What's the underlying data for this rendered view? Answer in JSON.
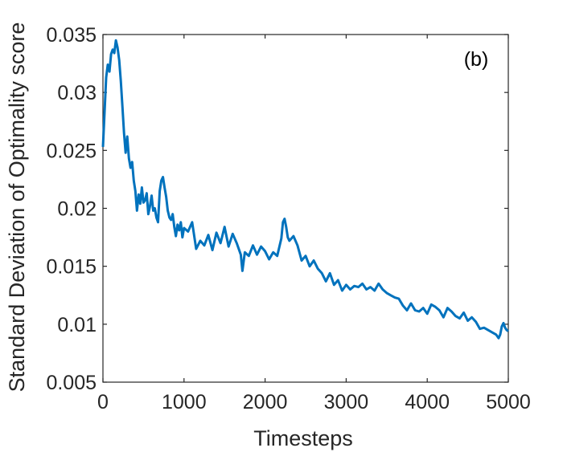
{
  "chart_data": {
    "type": "line",
    "title": "",
    "panel_label": "(b)",
    "xlabel": "Timesteps",
    "ylabel": "Standard Deviation of Optimality score",
    "xlim": [
      0,
      5000
    ],
    "ylim": [
      0.005,
      0.035
    ],
    "xticks": [
      0,
      1000,
      2000,
      3000,
      4000,
      5000
    ],
    "xtick_labels": [
      "0",
      "1000",
      "2000",
      "3000",
      "4000",
      "5000"
    ],
    "yticks": [
      0.005,
      0.01,
      0.015,
      0.02,
      0.025,
      0.03,
      0.035
    ],
    "ytick_labels": [
      "0.005",
      "0.01",
      "0.015",
      "0.02",
      "0.025",
      "0.03",
      "0.035"
    ],
    "grid": false,
    "line_color": "#0072BD",
    "series": [
      {
        "x": [
          0,
          20,
          40,
          60,
          80,
          100,
          120,
          140,
          160,
          180,
          200,
          220,
          240,
          260,
          280,
          300,
          320,
          340,
          360,
          380,
          400,
          420,
          440,
          460,
          480,
          500,
          520,
          540,
          560,
          580,
          600,
          620,
          640,
          660,
          680,
          700,
          720,
          740,
          760,
          780,
          800,
          820,
          840,
          860,
          880,
          900,
          920,
          940,
          960,
          980,
          1000,
          1050,
          1100,
          1150,
          1200,
          1250,
          1300,
          1350,
          1400,
          1450,
          1500,
          1550,
          1600,
          1650,
          1700,
          1720,
          1750,
          1800,
          1850,
          1900,
          1950,
          2000,
          2050,
          2100,
          2150,
          2200,
          2220,
          2240,
          2260,
          2280,
          2300,
          2350,
          2400,
          2450,
          2500,
          2550,
          2600,
          2650,
          2700,
          2750,
          2800,
          2850,
          2900,
          2950,
          3000,
          3050,
          3100,
          3150,
          3200,
          3250,
          3300,
          3350,
          3400,
          3450,
          3500,
          3550,
          3600,
          3650,
          3700,
          3750,
          3800,
          3850,
          3900,
          3950,
          4000,
          4050,
          4100,
          4150,
          4200,
          4250,
          4300,
          4350,
          4400,
          4450,
          4500,
          4550,
          4600,
          4650,
          4700,
          4750,
          4800,
          4850,
          4880,
          4900,
          4920,
          4940,
          4960,
          4980,
          5000
        ],
        "values": [
          0.0253,
          0.0283,
          0.0313,
          0.0324,
          0.0318,
          0.0333,
          0.0337,
          0.0334,
          0.0345,
          0.0339,
          0.0328,
          0.031,
          0.0288,
          0.0265,
          0.0248,
          0.0262,
          0.0243,
          0.0235,
          0.024,
          0.0224,
          0.0215,
          0.0198,
          0.0212,
          0.0204,
          0.0218,
          0.0205,
          0.0207,
          0.0213,
          0.0195,
          0.0202,
          0.0211,
          0.0198,
          0.02,
          0.0192,
          0.0188,
          0.0215,
          0.0224,
          0.0227,
          0.0218,
          0.021,
          0.0198,
          0.0192,
          0.019,
          0.0195,
          0.0184,
          0.0176,
          0.0186,
          0.0181,
          0.0188,
          0.0175,
          0.0183,
          0.018,
          0.0188,
          0.0165,
          0.0172,
          0.0168,
          0.0177,
          0.0164,
          0.0179,
          0.017,
          0.0184,
          0.0167,
          0.0178,
          0.017,
          0.016,
          0.0146,
          0.0162,
          0.0159,
          0.0168,
          0.016,
          0.0167,
          0.0163,
          0.0156,
          0.0162,
          0.0159,
          0.0174,
          0.0188,
          0.0191,
          0.0184,
          0.0175,
          0.0172,
          0.0176,
          0.0168,
          0.0155,
          0.0159,
          0.015,
          0.0155,
          0.0148,
          0.0144,
          0.0137,
          0.0144,
          0.0134,
          0.0138,
          0.0129,
          0.0134,
          0.013,
          0.0133,
          0.0132,
          0.0135,
          0.013,
          0.0132,
          0.0129,
          0.0135,
          0.013,
          0.0127,
          0.0125,
          0.0123,
          0.0122,
          0.0116,
          0.0112,
          0.0118,
          0.0112,
          0.0111,
          0.0114,
          0.0109,
          0.0117,
          0.0115,
          0.0112,
          0.0106,
          0.0114,
          0.0111,
          0.0107,
          0.0105,
          0.011,
          0.0103,
          0.0106,
          0.0102,
          0.0096,
          0.0097,
          0.0095,
          0.0093,
          0.0091,
          0.0088,
          0.0091,
          0.0098,
          0.0101,
          0.0097,
          0.0095,
          0.0094
        ]
      }
    ]
  }
}
